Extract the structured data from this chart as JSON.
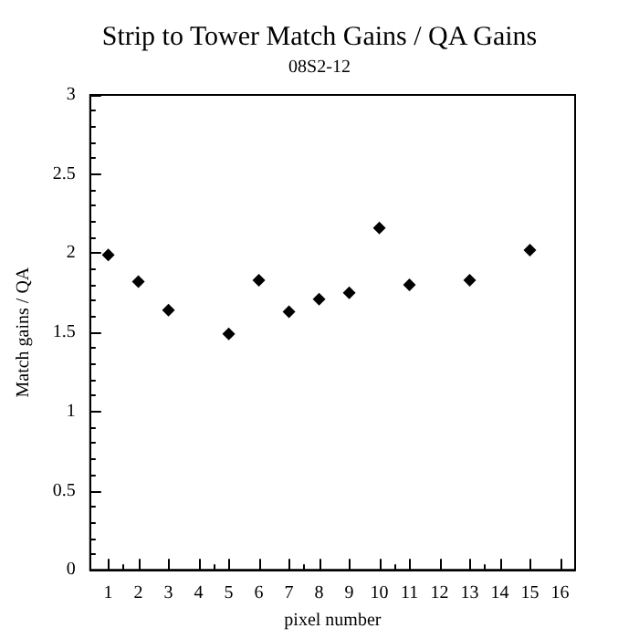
{
  "chart_data": {
    "type": "scatter",
    "title": "Strip to Tower Match Gains / QA Gains",
    "subtitle": "08S2-12",
    "xlabel": "pixel number",
    "ylabel": "Match gains / QA",
    "x": [
      1,
      2,
      3,
      5,
      6,
      7,
      8,
      9,
      10,
      11,
      13,
      15
    ],
    "values": [
      1.99,
      1.82,
      1.64,
      1.49,
      1.83,
      1.63,
      1.71,
      1.75,
      2.16,
      1.8,
      1.83,
      2.02
    ],
    "color": "#000000",
    "marker": "diamond",
    "xlim": [
      0.4,
      16.5
    ],
    "xticks": [
      1,
      2,
      3,
      4,
      5,
      6,
      7,
      8,
      9,
      10,
      11,
      12,
      13,
      14,
      15,
      16
    ],
    "ylim": [
      0,
      3
    ],
    "yticks": [
      0,
      0.5,
      1,
      1.5,
      2,
      2.5,
      3
    ],
    "grid": false
  }
}
